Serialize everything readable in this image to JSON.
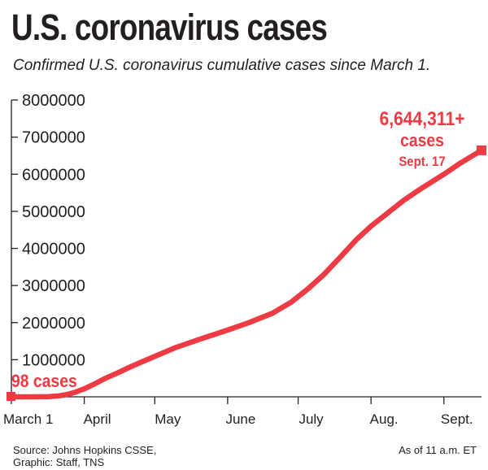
{
  "header": {
    "title": "U.S. coronavirus cases",
    "subtitle": "Confirmed U.S. coronavirus cumulative cases since March 1."
  },
  "footer": {
    "source_line1": "Source: Johns Hopkins CSSE,",
    "source_line2": "Graphic: Staff, TNS",
    "as_of": "As of 11 a.m. ET"
  },
  "colors": {
    "series": "#ee3a43",
    "text": "#231f20"
  },
  "chart_data": {
    "type": "line",
    "title": "U.S. coronavirus cases",
    "subtitle": "Confirmed U.S. coronavirus cumulative cases since March 1.",
    "xlabel": "",
    "ylabel": "",
    "ylim": [
      0,
      8000000
    ],
    "yticks": [
      1000000,
      2000000,
      3000000,
      4000000,
      5000000,
      6000000,
      7000000,
      8000000
    ],
    "ytick_labels": [
      "1000000",
      "2000000",
      "3000000",
      "4000000",
      "5000000",
      "6000000",
      "7000000",
      "8000000"
    ],
    "xlim": [
      "2020-03-01",
      "2020-09-17"
    ],
    "xticks": [
      {
        "date": "2020-03-01",
        "label": "March 1"
      },
      {
        "date": "2020-04-01",
        "label": "April"
      },
      {
        "date": "2020-05-01",
        "label": "May"
      },
      {
        "date": "2020-06-01",
        "label": "June"
      },
      {
        "date": "2020-07-01",
        "label": "July"
      },
      {
        "date": "2020-08-01",
        "label": "Aug."
      },
      {
        "date": "2020-09-01",
        "label": "Sept."
      }
    ],
    "grid": false,
    "series": [
      {
        "points": [
          {
            "date": "2020-03-01",
            "value": 98
          },
          {
            "date": "2020-03-10",
            "value": 1000
          },
          {
            "date": "2020-03-17",
            "value": 6500
          },
          {
            "date": "2020-03-21",
            "value": 25000
          },
          {
            "date": "2020-03-25",
            "value": 68000
          },
          {
            "date": "2020-03-28",
            "value": 120000
          },
          {
            "date": "2020-04-01",
            "value": 215000
          },
          {
            "date": "2020-04-05",
            "value": 336000
          },
          {
            "date": "2020-04-10",
            "value": 500000
          },
          {
            "date": "2020-04-15",
            "value": 640000
          },
          {
            "date": "2020-04-20",
            "value": 790000
          },
          {
            "date": "2020-04-25",
            "value": 930000
          },
          {
            "date": "2020-05-01",
            "value": 1090000
          },
          {
            "date": "2020-05-10",
            "value": 1330000
          },
          {
            "date": "2020-05-20",
            "value": 1550000
          },
          {
            "date": "2020-06-01",
            "value": 1800000
          },
          {
            "date": "2020-06-10",
            "value": 2000000
          },
          {
            "date": "2020-06-20",
            "value": 2250000
          },
          {
            "date": "2020-06-28",
            "value": 2550000
          },
          {
            "date": "2020-07-05",
            "value": 2900000
          },
          {
            "date": "2020-07-12",
            "value": 3300000
          },
          {
            "date": "2020-07-19",
            "value": 3770000
          },
          {
            "date": "2020-07-26",
            "value": 4250000
          },
          {
            "date": "2020-08-01",
            "value": 4600000
          },
          {
            "date": "2020-08-08",
            "value": 4950000
          },
          {
            "date": "2020-08-15",
            "value": 5300000
          },
          {
            "date": "2020-08-22",
            "value": 5600000
          },
          {
            "date": "2020-09-01",
            "value": 6000000
          },
          {
            "date": "2020-09-08",
            "value": 6300000
          },
          {
            "date": "2020-09-17",
            "value": 6644311
          }
        ]
      }
    ],
    "annotations": {
      "start": {
        "date": "2020-03-01",
        "value": 98,
        "text": "98 cases"
      },
      "end": {
        "date": "2020-09-17",
        "value": 6644311,
        "line1": "6,644,311+",
        "line2": "cases",
        "line3": "Sept. 17"
      }
    }
  }
}
